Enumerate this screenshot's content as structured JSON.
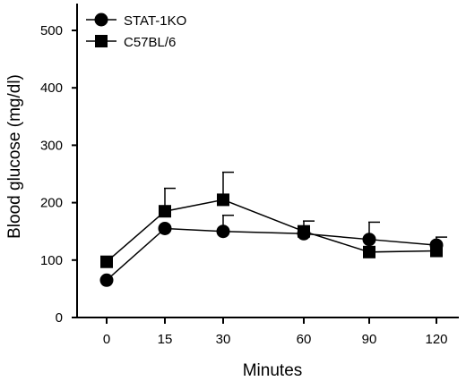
{
  "chart_data": {
    "type": "line",
    "xlabel": "Minutes",
    "ylabel": "Blood glucose (mg/dl)",
    "categories": [
      "0",
      "15",
      "30",
      "60",
      "90",
      "120"
    ],
    "ylim": [
      0,
      550
    ],
    "yticks": [
      0,
      100,
      200,
      300,
      400,
      500
    ],
    "grid": false,
    "legend_position": "top-left",
    "series": [
      {
        "name": "STAT-1KO",
        "marker": "circle",
        "values": [
          65,
          155,
          150,
          146,
          136,
          126
        ],
        "error": [
          0,
          0,
          28,
          0,
          30,
          14
        ]
      },
      {
        "name": "C57BL/6",
        "marker": "square",
        "values": [
          97,
          185,
          205,
          150,
          114,
          116
        ],
        "error": [
          0,
          40,
          48,
          18,
          0,
          0
        ]
      }
    ]
  }
}
